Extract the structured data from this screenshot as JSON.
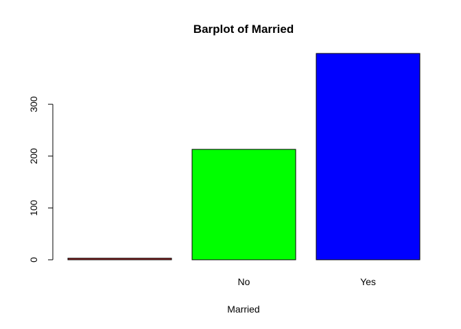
{
  "chart_data": {
    "type": "bar",
    "title": "Barplot of Married",
    "xlabel": "Married",
    "ylabel": "",
    "categories": [
      "",
      "No",
      "Yes"
    ],
    "values": [
      3,
      213,
      398
    ],
    "colors": [
      "#A52A2A",
      "#00FF00",
      "#0000FF"
    ],
    "ylim": [
      0,
      398
    ],
    "yticks": [
      0,
      100,
      200,
      300
    ],
    "grid": false,
    "legend": "none"
  }
}
